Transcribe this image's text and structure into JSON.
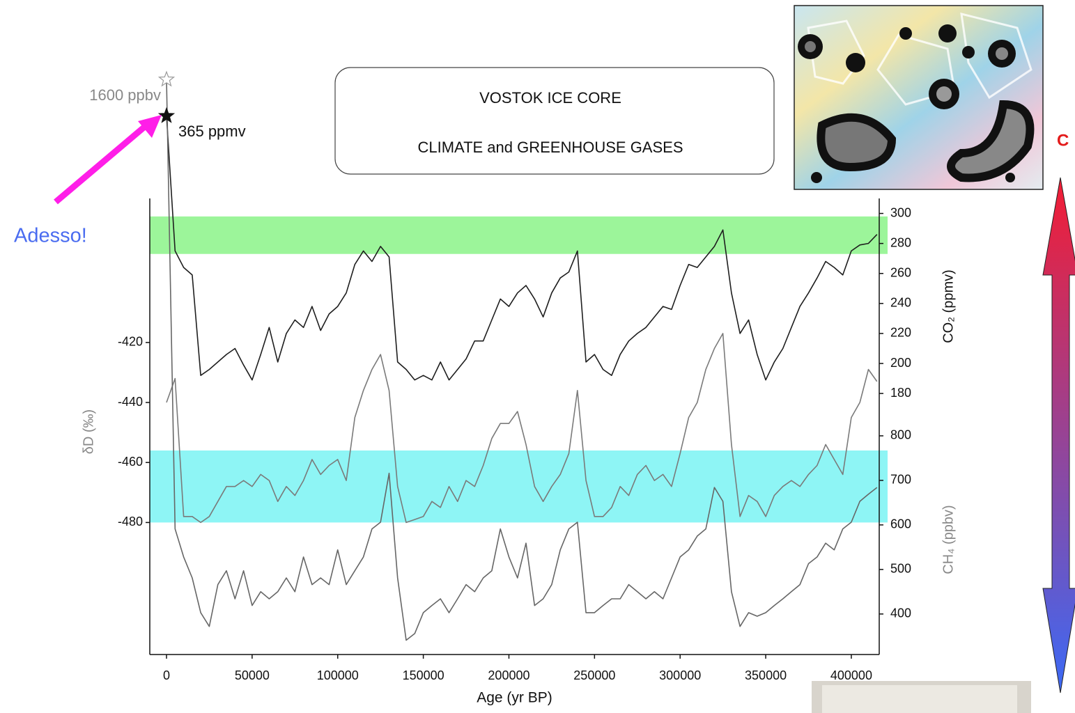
{
  "chart_data": {
    "type": "line",
    "title": [
      "VOSTOK ICE CORE",
      "CLIMATE and GREENHOUSE GASES"
    ],
    "xlabel": "Age (yr BP)",
    "x": [
      0,
      5000,
      10000,
      15000,
      20000,
      25000,
      30000,
      35000,
      40000,
      45000,
      50000,
      55000,
      60000,
      65000,
      70000,
      75000,
      80000,
      85000,
      90000,
      95000,
      100000,
      105000,
      110000,
      115000,
      120000,
      125000,
      130000,
      135000,
      140000,
      145000,
      150000,
      155000,
      160000,
      165000,
      170000,
      175000,
      180000,
      185000,
      190000,
      195000,
      200000,
      205000,
      210000,
      215000,
      220000,
      225000,
      230000,
      235000,
      240000,
      245000,
      250000,
      255000,
      260000,
      265000,
      270000,
      275000,
      280000,
      285000,
      290000,
      295000,
      300000,
      305000,
      310000,
      315000,
      320000,
      325000,
      330000,
      335000,
      340000,
      345000,
      350000,
      355000,
      360000,
      365000,
      370000,
      375000,
      380000,
      385000,
      390000,
      395000,
      400000,
      405000,
      410000,
      415000
    ],
    "xlim": [
      -9766,
      416300
    ],
    "xticks": [
      0,
      50000,
      100000,
      150000,
      200000,
      250000,
      300000,
      350000,
      400000
    ],
    "ylim": [
      -524,
      -372
    ],
    "yticks": [
      -420,
      -440,
      -460,
      -480
    ],
    "y2lim": [
      6,
      310
    ],
    "y2ticks": [
      180,
      200,
      220,
      240,
      260,
      280,
      300
    ],
    "y3lim": [
      309,
      1333
    ],
    "y3ticks": [
      400,
      500,
      600,
      700,
      800
    ],
    "series": [
      {
        "name": "CO₂ (ppmv)",
        "axis": "y2",
        "color": "#1e1e1e",
        "values": [
          365,
          275,
          264,
          259,
          192,
          196,
          201,
          206,
          210,
          199,
          189,
          206,
          224,
          201,
          220,
          229,
          224,
          238,
          222,
          233,
          238,
          247,
          266,
          275,
          268,
          278,
          271,
          201,
          196,
          189,
          192,
          189,
          201,
          189,
          196,
          203,
          215,
          215,
          229,
          243,
          238,
          247,
          252,
          243,
          231,
          247,
          257,
          261,
          275,
          201,
          206,
          196,
          192,
          206,
          215,
          220,
          224,
          231,
          238,
          236,
          252,
          266,
          264,
          271,
          278,
          289,
          247,
          220,
          229,
          206,
          189,
          201,
          210,
          224,
          238,
          247,
          257,
          268,
          264,
          259,
          275,
          279,
          280,
          286
        ]
      },
      {
        "name": "δD (‰)",
        "axis": "y",
        "color": "#7a7a7a",
        "values": [
          -440,
          -432,
          -478,
          -478,
          -480,
          -478,
          -473,
          -468,
          -468,
          -466,
          -468,
          -464,
          -466,
          -473,
          -468,
          -471,
          -466,
          -459,
          -464,
          -461,
          -459,
          -466,
          -445,
          -436,
          -429,
          -424,
          -436,
          -468,
          -480,
          -479,
          -478,
          -473,
          -475,
          -468,
          -473,
          -466,
          -468,
          -461,
          -452,
          -447,
          -447,
          -443,
          -454,
          -468,
          -473,
          -468,
          -464,
          -457,
          -436,
          -466,
          -478,
          -478,
          -475,
          -468,
          -471,
          -464,
          -461,
          -466,
          -464,
          -468,
          -457,
          -445,
          -440,
          -429,
          -422,
          -417,
          -454,
          -478,
          -471,
          -473,
          -478,
          -471,
          -468,
          -466,
          -468,
          -464,
          -461,
          -454,
          -459,
          -464,
          -445,
          -440,
          -429,
          -433
        ]
      },
      {
        "name": "CH₄ (ppbv)",
        "axis": "y3",
        "color": "#666666",
        "values": [
          1600,
          591,
          528,
          481,
          403,
          372,
          466,
          497,
          434,
          497,
          419,
          450,
          434,
          450,
          481,
          450,
          528,
          466,
          481,
          466,
          544,
          466,
          497,
          528,
          591,
          606,
          716,
          481,
          341,
          356,
          403,
          419,
          434,
          403,
          434,
          466,
          450,
          481,
          497,
          591,
          528,
          481,
          559,
          419,
          434,
          466,
          544,
          591,
          606,
          403,
          403,
          419,
          434,
          434,
          466,
          450,
          434,
          450,
          434,
          481,
          528,
          544,
          575,
          591,
          684,
          653,
          450,
          372,
          403,
          395,
          403,
          419,
          434,
          450,
          466,
          513,
          528,
          559,
          544,
          591,
          606,
          653,
          669,
          684
        ]
      }
    ],
    "bands": [
      {
        "axis": "y2",
        "range": [
          273,
          298
        ],
        "color": "#9cf59a"
      },
      {
        "axis": "y",
        "range": [
          -456,
          -480
        ],
        "color": "#8ef5f5"
      }
    ],
    "annotations": [
      "1600 ppbv",
      "365 ppmv",
      "Adesso!",
      "C"
    ]
  }
}
